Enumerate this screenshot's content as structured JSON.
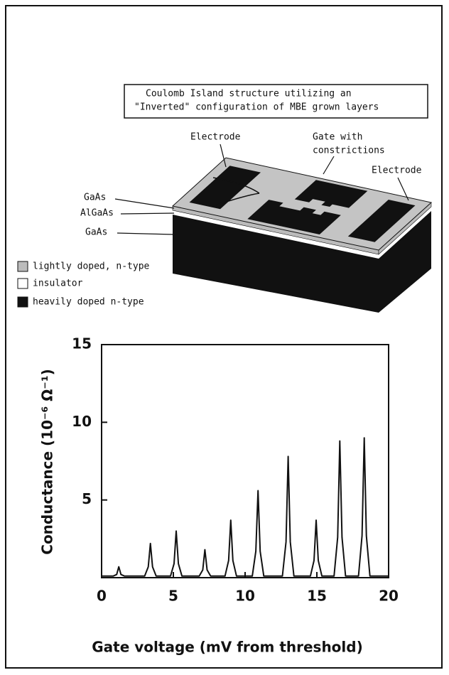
{
  "diagram": {
    "caption": [
      "Coulomb Island structure utilizing an",
      "\"Inverted\" configuration of MBE grown layers"
    ],
    "electrode_left": "Electrode",
    "electrode_right": "Electrode",
    "gate": [
      "Gate with",
      "constrictions"
    ],
    "layers": [
      "GaAs",
      "AlGaAs",
      "GaAs"
    ],
    "legend": [
      "lightly doped, n-type",
      "insulator",
      "heavily doped n-type"
    ]
  },
  "chart_data": {
    "type": "line",
    "xlabel": "Gate voltage (mV from threshold)",
    "ylabel": "Conductance (10⁻⁶ Ω⁻¹)",
    "color": "#111111",
    "xlim": [
      0,
      20
    ],
    "ylim": [
      0,
      15
    ],
    "xticks": [
      0,
      5,
      10,
      15,
      20
    ],
    "yticks": [
      5,
      10,
      15
    ],
    "x": [
      0,
      0.8,
      1.05,
      1.2,
      1.35,
      1.6,
      3.0,
      3.25,
      3.4,
      3.55,
      3.8,
      4.8,
      5.05,
      5.2,
      5.35,
      5.6,
      6.8,
      7.05,
      7.2,
      7.35,
      7.6,
      8.6,
      8.85,
      9.0,
      9.15,
      9.4,
      10.5,
      10.75,
      10.9,
      11.05,
      11.3,
      12.6,
      12.85,
      13.0,
      13.15,
      13.4,
      14.55,
      14.8,
      14.95,
      15.1,
      15.35,
      16.2,
      16.45,
      16.6,
      16.75,
      17.0,
      17.9,
      18.15,
      18.3,
      18.45,
      18.7,
      20
    ],
    "values": [
      0.1,
      0.1,
      0.2,
      0.7,
      0.2,
      0.1,
      0.1,
      0.7,
      2.2,
      0.7,
      0.1,
      0.1,
      0.9,
      3.0,
      0.9,
      0.1,
      0.1,
      0.5,
      1.8,
      0.5,
      0.1,
      0.1,
      1.1,
      3.7,
      1.1,
      0.1,
      0.1,
      1.7,
      5.6,
      1.7,
      0.1,
      0.1,
      2.3,
      7.8,
      2.3,
      0.1,
      0.1,
      1.1,
      3.7,
      1.1,
      0.1,
      0.1,
      2.6,
      8.8,
      2.6,
      0.1,
      0.1,
      2.7,
      9.0,
      2.7,
      0.1,
      0.1
    ]
  }
}
